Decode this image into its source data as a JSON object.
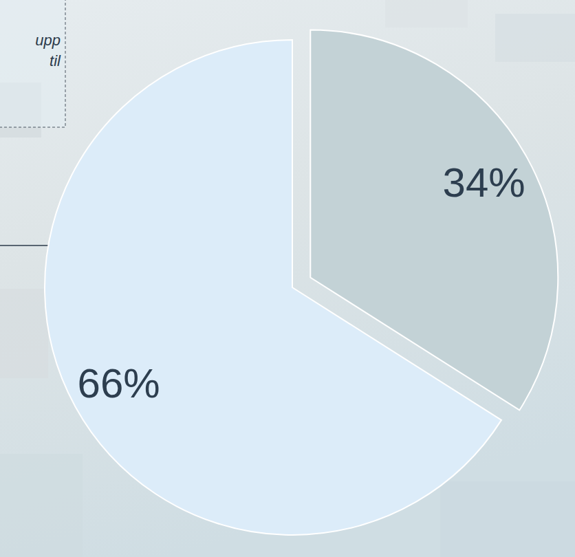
{
  "chart_data": {
    "type": "pie",
    "categories": [
      null,
      null
    ],
    "values": [
      34,
      66
    ],
    "value_labels": [
      "34%",
      "66%"
    ],
    "colors": [
      "#c3d2d6",
      "#dcecf9"
    ],
    "data_labels": true,
    "annotations": [
      "upp",
      "til"
    ]
  }
}
